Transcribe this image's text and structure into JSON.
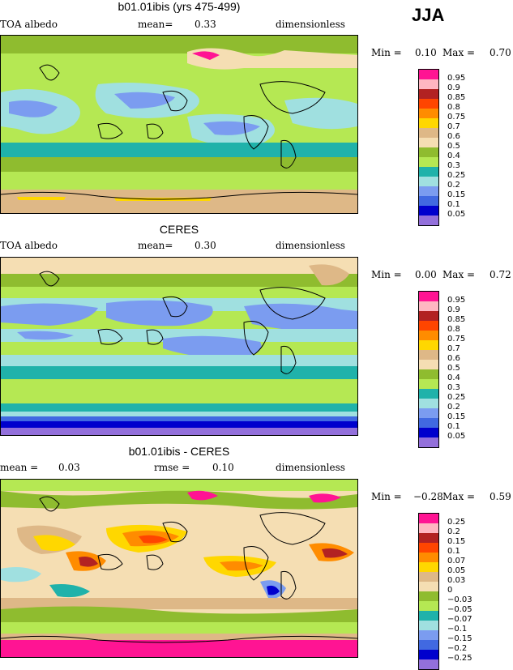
{
  "season": "JJA",
  "panels": [
    {
      "title": "b01.01ibis (yrs 475-499)",
      "left_label": "TOA albedo",
      "mid_label": "mean=",
      "mid_value": "0.33",
      "right_label": "dimensionless",
      "min_label": "Min =",
      "min_value": "0.10",
      "max_label": "Max =",
      "max_value": "0.70",
      "levels": [
        "0.95",
        "0.9",
        "0.85",
        "0.8",
        "0.75",
        "0.7",
        "0.6",
        "0.5",
        "0.4",
        "0.3",
        "0.25",
        "0.2",
        "0.15",
        "0.1",
        "0.05"
      ]
    },
    {
      "title": "CERES",
      "left_label": "TOA albedo",
      "mid_label": "mean=",
      "mid_value": "0.30",
      "right_label": "dimensionless",
      "min_label": "Min =",
      "min_value": "0.00",
      "max_label": "Max =",
      "max_value": "0.72",
      "levels": [
        "0.95",
        "0.9",
        "0.85",
        "0.8",
        "0.75",
        "0.7",
        "0.6",
        "0.5",
        "0.4",
        "0.3",
        "0.25",
        "0.2",
        "0.15",
        "0.1",
        "0.05"
      ]
    },
    {
      "title": "b01.01ibis - CERES",
      "left_label": "mean =",
      "left_value": "0.03",
      "mid_label": "rmse =",
      "mid_value": "0.10",
      "right_label": "dimensionless",
      "min_label": "Min =",
      "min_value": "−0.28",
      "max_label": "Max =",
      "max_value": "0.59",
      "levels": [
        "0.25",
        "0.2",
        "0.15",
        "0.1",
        "0.07",
        "0.05",
        "0.03",
        "0",
        "−0.03",
        "−0.05",
        "−0.07",
        "−0.1",
        "−0.15",
        "−0.2",
        "−0.25"
      ]
    }
  ],
  "colors": {
    "scale": [
      "#ff1493",
      "#ffb6c1",
      "#b22222",
      "#ff4500",
      "#ff8c00",
      "#ffd700",
      "#deb887",
      "#f5deb3",
      "#8fbc2f",
      "#b5e853",
      "#20b2aa",
      "#a0e0e0",
      "#7b9cf0",
      "#4169e1",
      "#0000cd",
      "#9370db"
    ],
    "land_outline": "#000000"
  }
}
